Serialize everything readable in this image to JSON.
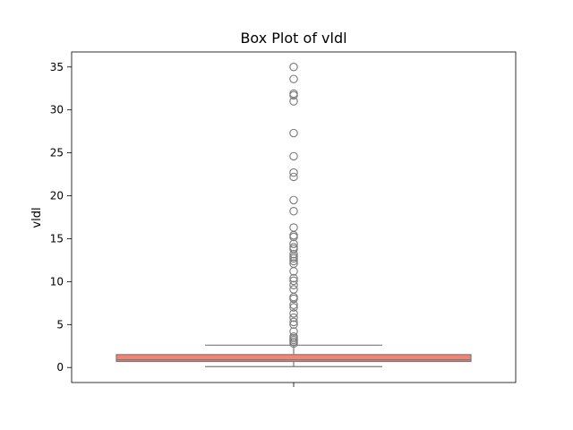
{
  "chart_data": {
    "type": "box",
    "title": "Box Plot of vldl",
    "xlabel": "",
    "ylabel": "vldl",
    "ylim": [
      -1.75,
      36.75
    ],
    "yticks": [
      0,
      5,
      10,
      15,
      20,
      25,
      30,
      35
    ],
    "grid": false,
    "legend": "none",
    "box_color": "#fa8072",
    "line_color": "#7a7a7a",
    "box": {
      "whisker_low": 0.1,
      "q1": 0.7,
      "median": 0.9,
      "q3": 1.5,
      "whisker_high": 2.6
    },
    "outliers": [
      35.0,
      33.6,
      31.9,
      31.7,
      31.0,
      27.3,
      24.6,
      22.7,
      22.2,
      19.5,
      18.2,
      16.3,
      15.4,
      15.2,
      14.4,
      14.0,
      13.8,
      13.2,
      12.9,
      12.7,
      12.4,
      12.1,
      11.2,
      10.4,
      10.1,
      9.6,
      9.1,
      8.2,
      8.0,
      7.3,
      7.0,
      6.3,
      5.8,
      5.3,
      5.0,
      4.2,
      3.6,
      3.4,
      3.2,
      3.0,
      2.8
    ]
  }
}
